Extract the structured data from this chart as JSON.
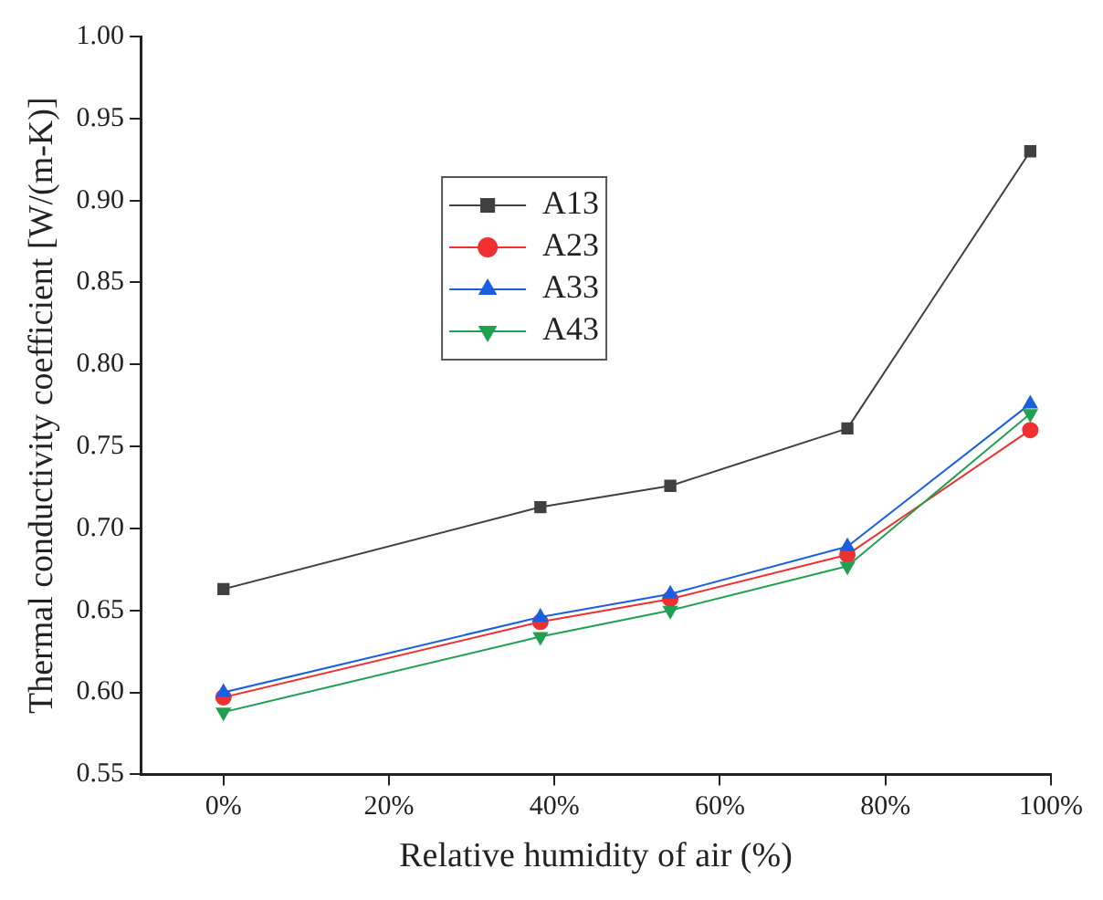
{
  "chart_data": {
    "type": "line",
    "xlabel": "Relative humidity of air (%)",
    "ylabel": "Thermal conductivity coefficient [W/(m-K)]",
    "xlim": [
      -10,
      100
    ],
    "xticks": [
      {
        "value": 0,
        "label": "0%"
      },
      {
        "value": 20,
        "label": "20%"
      },
      {
        "value": 40,
        "label": "40%"
      },
      {
        "value": 60,
        "label": "60%"
      },
      {
        "value": 80,
        "label": "80%"
      },
      {
        "value": 100,
        "label": "100%"
      }
    ],
    "ylim": [
      0.55,
      1.0
    ],
    "yticks": [
      {
        "value": 0.55,
        "label": "0.55"
      },
      {
        "value": 0.6,
        "label": "0.60"
      },
      {
        "value": 0.65,
        "label": "0.65"
      },
      {
        "value": 0.7,
        "label": "0.70"
      },
      {
        "value": 0.75,
        "label": "0.75"
      },
      {
        "value": 0.8,
        "label": "0.80"
      },
      {
        "value": 0.85,
        "label": "0.85"
      },
      {
        "value": 0.9,
        "label": "0.90"
      },
      {
        "value": 0.95,
        "label": "0.95"
      },
      {
        "value": 1.0,
        "label": "1.00"
      }
    ],
    "x": [
      0,
      38.3,
      54,
      75.4,
      97.5
    ],
    "grid": false,
    "legend": "top left",
    "line_style": "solid",
    "series": [
      {
        "name": "A13",
        "color": "#404040",
        "marker": "square",
        "values": [
          0.663,
          0.713,
          0.726,
          0.761,
          0.93
        ]
      },
      {
        "name": "A23",
        "color": "#f03030",
        "marker": "circle",
        "values": [
          0.597,
          0.643,
          0.657,
          0.684,
          0.76
        ]
      },
      {
        "name": "A33",
        "color": "#1a5fe0",
        "marker": "triangle",
        "values": [
          0.6,
          0.646,
          0.66,
          0.689,
          0.776
        ]
      },
      {
        "name": "A43",
        "color": "#20a050",
        "marker": "triangle-down",
        "values": [
          0.588,
          0.634,
          0.65,
          0.677,
          0.77
        ]
      }
    ]
  }
}
